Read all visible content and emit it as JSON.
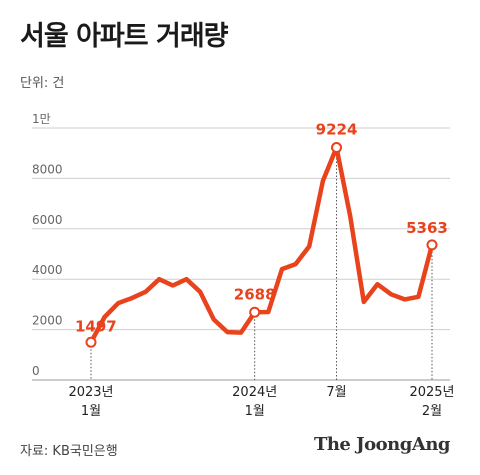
{
  "title": "서울 아파트 거래량",
  "unit_label": "단위: 건",
  "source": "자료: KB국민은행",
  "brand": "The JoongAng",
  "colors": {
    "line": "#e8431c",
    "grid": "#cfcfcf",
    "marker_fill": "#ffffff"
  },
  "chart_data": {
    "type": "line",
    "title": "서울 아파트 거래량",
    "ylabel": "단위: 건",
    "ylim": [
      0,
      10000
    ],
    "y_ticks": [
      {
        "value": 0,
        "label": "0"
      },
      {
        "value": 2000,
        "label": "2000"
      },
      {
        "value": 4000,
        "label": "4000"
      },
      {
        "value": 6000,
        "label": "6000"
      },
      {
        "value": 8000,
        "label": "8000"
      },
      {
        "value": 10000,
        "label": "1만"
      }
    ],
    "x_range": [
      0,
      25
    ],
    "x_ticks": [
      {
        "index": 0,
        "line1": "2023년",
        "line2": "1월"
      },
      {
        "index": 12,
        "line1": "2024년",
        "line2": "1월"
      },
      {
        "index": 18,
        "line1": "7월",
        "line2": ""
      },
      {
        "index": 25,
        "line1": "2025년",
        "line2": "2월"
      }
    ],
    "series": [
      {
        "values": [
          1497,
          2500,
          3050,
          3250,
          3500,
          4000,
          3750,
          4000,
          3500,
          2400,
          1900,
          1880,
          2688,
          2700,
          4400,
          4600,
          5300,
          7900,
          9224,
          6500,
          3100,
          3800,
          3400,
          3200,
          3300,
          5363
        ]
      }
    ],
    "labeled_points": [
      {
        "index": 0,
        "label": "1497"
      },
      {
        "index": 12,
        "label": "2688"
      },
      {
        "index": 18,
        "label": "9224"
      },
      {
        "index": 25,
        "label": "5363"
      }
    ],
    "grid": true
  }
}
